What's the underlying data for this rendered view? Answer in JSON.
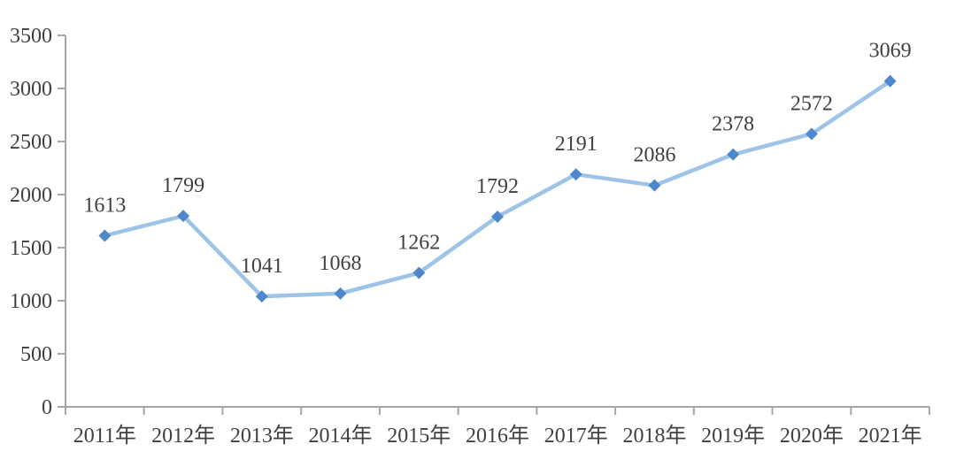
{
  "chart_data": {
    "type": "line",
    "title": "",
    "xlabel": "",
    "ylabel": "",
    "categories": [
      "2011年",
      "2012年",
      "2013年",
      "2014年",
      "2015年",
      "2016年",
      "2017年",
      "2018年",
      "2019年",
      "2020年",
      "2021年"
    ],
    "series": [
      {
        "name": "value",
        "values": [
          1613,
          1799,
          1041,
          1068,
          1262,
          1792,
          2191,
          2086,
          2378,
          2572,
          3069
        ]
      }
    ],
    "data_labels": [
      "1613",
      "1799",
      "1041",
      "1068",
      "1262",
      "1792",
      "2191",
      "2086",
      "2378",
      "2572",
      "3069"
    ],
    "ylim": [
      0,
      3500
    ],
    "yticks": [
      0,
      500,
      1000,
      1500,
      2000,
      2500,
      3000,
      3500
    ],
    "grid": false,
    "legend": "none",
    "marker_shape": "diamond",
    "colors": {
      "line": "#9DC3E6",
      "marker": "#4E87CB",
      "axis": "#A6A6A6",
      "text": "#404040"
    }
  }
}
